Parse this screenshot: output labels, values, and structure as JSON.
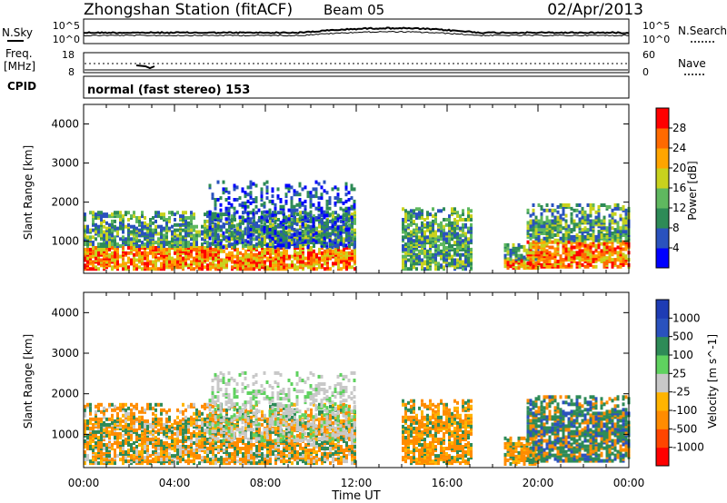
{
  "header": {
    "station": "Zhongshan Station (fitACF)",
    "beam": "Beam 05",
    "date": "02/Apr/2013"
  },
  "noise_panel": {
    "left_label": "N.Sky",
    "right_label": "N.Search",
    "left_ticks": [
      "10^5",
      "10^0"
    ],
    "right_ticks": [
      "10^5",
      "10^0"
    ]
  },
  "freq_panel": {
    "left_label_1": "Freq.",
    "left_label_2": "[MHz]",
    "cpid_label": "CPID",
    "left_ticks": [
      "18",
      "8"
    ],
    "right_label": "Nave",
    "right_ticks": [
      "60",
      "0"
    ]
  },
  "mode_text": "normal (fast stereo) 153",
  "colors": {
    "power": [
      "#0000ff",
      "#2a52be",
      "#2e8b57",
      "#5fb85f",
      "#c8d21e",
      "#ffa500",
      "#ff6a00",
      "#ff0000"
    ],
    "velocity": [
      "#ff0000",
      "#ff4500",
      "#ff8c00",
      "#ffb400",
      "#c8c8c8",
      "#5fd25f",
      "#2e8b57",
      "#2a52be",
      "#1e3cb4"
    ]
  },
  "chart_data": [
    {
      "type": "heatmap",
      "ylabel": "Slant Range [km]",
      "yticks": [
        "1000",
        "2000",
        "3000",
        "4000"
      ],
      "xticks": [
        "00:00",
        "04:00",
        "08:00",
        "12:00",
        "16:00",
        "20:00",
        "00:00"
      ],
      "colorbar_label": "Power [dB]",
      "colorbar_ticks": [
        "4",
        "8",
        "12",
        "16",
        "20",
        "24",
        "28"
      ],
      "ylim": [
        180,
        4500
      ],
      "x_range_hours": [
        0,
        24
      ],
      "echo_regions": [
        {
          "t_start": 0.0,
          "t_end": 11.9,
          "range_start": 200,
          "range_end": 1700,
          "intensity": "high"
        },
        {
          "t_start": 5.5,
          "t_end": 11.9,
          "range_start": 800,
          "range_end": 2500,
          "intensity": "low"
        },
        {
          "t_start": 14.0,
          "t_end": 17.0,
          "range_start": 200,
          "range_end": 1800,
          "intensity": "medium"
        },
        {
          "t_start": 18.5,
          "t_end": 20.0,
          "range_start": 180,
          "range_end": 900,
          "intensity": "high"
        },
        {
          "t_start": 19.5,
          "t_end": 24.0,
          "range_start": 300,
          "range_end": 1900,
          "intensity": "high"
        }
      ]
    },
    {
      "type": "heatmap",
      "ylabel": "Slant Range [km]",
      "yticks": [
        "1000",
        "2000",
        "3000",
        "4000"
      ],
      "xticks": [
        "00:00",
        "04:00",
        "08:00",
        "12:00",
        "16:00",
        "20:00",
        "00:00"
      ],
      "xlabel": "Time UT",
      "colorbar_label": "Velocity [m s^-1]",
      "colorbar_ticks": [
        "1000",
        "500",
        "100",
        "25",
        "-25",
        "-100",
        "-500",
        "-1000"
      ],
      "ylim": [
        180,
        4500
      ],
      "x_range_hours": [
        0,
        24
      ]
    }
  ]
}
